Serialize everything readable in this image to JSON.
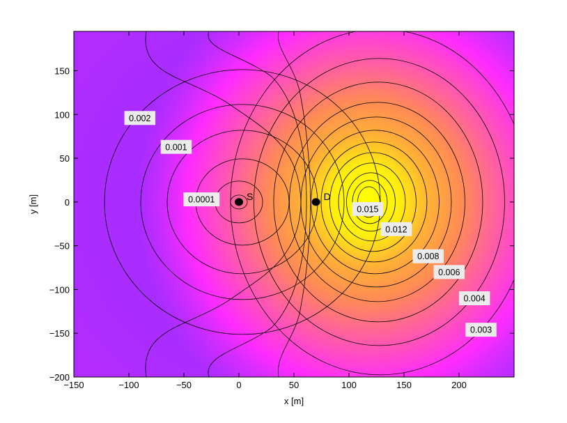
{
  "chart_data": {
    "type": "contour",
    "title": "",
    "xlabel": "x [m]",
    "ylabel": "y [m]",
    "xlim": [
      -150,
      250
    ],
    "ylim": [
      -200,
      195
    ],
    "grid": false,
    "x_ticks": [
      -150,
      -100,
      -50,
      0,
      50,
      100,
      150,
      200
    ],
    "y_ticks": [
      -200,
      -150,
      -100,
      -50,
      0,
      50,
      100,
      150
    ],
    "x_tick_labels": [
      "−150",
      "−100",
      "−50",
      "0",
      "50",
      "100",
      "150",
      "200"
    ],
    "y_tick_labels": [
      "−200",
      "−150",
      "−100",
      "−50",
      "0",
      "50",
      "100",
      "150"
    ],
    "points": [
      {
        "label": "S",
        "x": 0,
        "y": 0
      },
      {
        "label": "D",
        "x": 70,
        "y": 0
      }
    ],
    "contour_labels": [
      {
        "text": "0.002",
        "x": -90,
        "y": 96
      },
      {
        "text": "0.001",
        "x": -57,
        "y": 63
      },
      {
        "text": "0.0001",
        "x": -34,
        "y": 3
      },
      {
        "text": "0.015",
        "x": 117,
        "y": -8
      },
      {
        "text": "0.012",
        "x": 143,
        "y": -31
      },
      {
        "text": "0.008",
        "x": 172,
        "y": -62
      },
      {
        "text": "0.006",
        "x": 191,
        "y": -80
      },
      {
        "text": "0.004",
        "x": 214,
        "y": -110
      },
      {
        "text": "0.003",
        "x": 220,
        "y": -146
      }
    ],
    "colors": {
      "low": "#a52bff",
      "mid": "#ff2bff",
      "high": "#ffff00",
      "orange": "#ff9a45",
      "label_bg": "#ececec",
      "contour_line": "#000000"
    }
  }
}
